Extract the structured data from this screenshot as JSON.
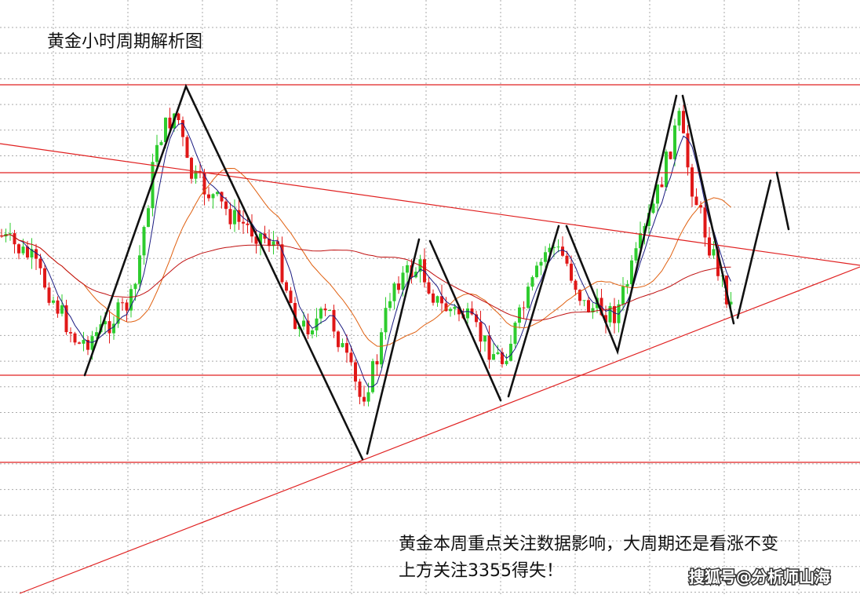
{
  "chart_data": {
    "type": "candlestick",
    "title": "黄金小时周期解析图",
    "annotations": [
      "黄金本周重点关注数据影响，大周期还是看涨不变",
      "上方关注3355得失！"
    ],
    "watermark": "搜狐号@分析师山海"
  }
}
